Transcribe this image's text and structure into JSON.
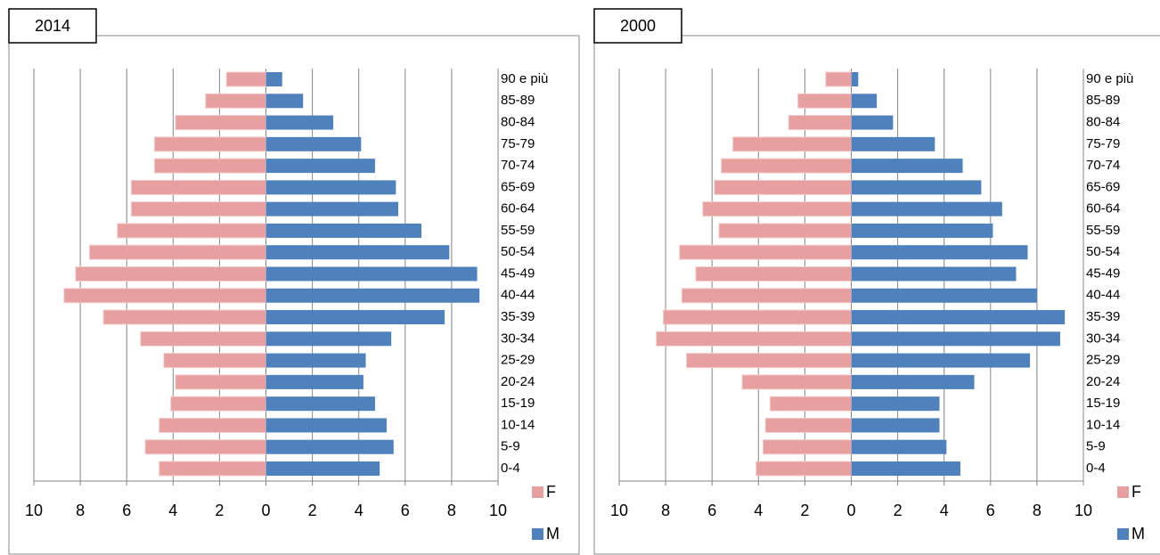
{
  "chart_data": [
    {
      "type": "bar",
      "orientation": "horizontal",
      "title": "2014",
      "categories": [
        "90 e più",
        "85-89",
        "80-84",
        "75-79",
        "70-74",
        "65-69",
        "60-64",
        "55-59",
        "50-54",
        "45-49",
        "40-44",
        "35-39",
        "30-34",
        "25-29",
        "20-24",
        "15-19",
        "10-14",
        "5-9",
        "0-4"
      ],
      "series": [
        {
          "name": "F",
          "color": "#e6a0a0",
          "values": [
            -1.7,
            -2.6,
            -3.9,
            -4.8,
            -4.8,
            -5.8,
            -5.8,
            -6.4,
            -7.6,
            -8.2,
            -8.7,
            -7.0,
            -5.4,
            -4.4,
            -3.9,
            -4.1,
            -4.6,
            -5.2,
            -4.6
          ]
        },
        {
          "name": "M",
          "color": "#4f81bd",
          "values": [
            0.7,
            1.6,
            2.9,
            4.1,
            4.7,
            5.6,
            5.7,
            6.7,
            7.9,
            9.1,
            9.2,
            7.7,
            5.4,
            4.3,
            4.2,
            4.7,
            5.2,
            5.5,
            4.9
          ]
        }
      ],
      "xlim": [
        -10,
        10
      ],
      "xticks": [
        {
          "value": -10,
          "label": "10"
        },
        {
          "value": -8,
          "label": "8"
        },
        {
          "value": -6,
          "label": "6"
        },
        {
          "value": -4,
          "label": "4"
        },
        {
          "value": -2,
          "label": "2"
        },
        0,
        2,
        4,
        6,
        8,
        10
      ],
      "grid": true,
      "legend": "right"
    },
    {
      "type": "bar",
      "orientation": "horizontal",
      "title": "2000",
      "categories": [
        "90 e più",
        "85-89",
        "80-84",
        "75-79",
        "70-74",
        "65-69",
        "60-64",
        "55-59",
        "50-54",
        "45-49",
        "40-44",
        "35-39",
        "30-34",
        "25-29",
        "20-24",
        "15-19",
        "10-14",
        "5-9",
        "0-4"
      ],
      "series": [
        {
          "name": "F",
          "color": "#e6a0a0",
          "values": [
            -1.1,
            -2.3,
            -2.7,
            -5.1,
            -5.6,
            -5.9,
            -6.4,
            -5.7,
            -7.4,
            -6.7,
            -7.3,
            -8.1,
            -8.4,
            -7.1,
            -4.7,
            -3.5,
            -3.7,
            -3.8,
            -4.1
          ]
        },
        {
          "name": "M",
          "color": "#4f81bd",
          "values": [
            0.3,
            1.1,
            1.8,
            3.6,
            4.8,
            5.6,
            6.5,
            6.1,
            7.6,
            7.1,
            8.0,
            9.2,
            9.0,
            7.7,
            5.3,
            3.8,
            3.8,
            4.1,
            4.7
          ]
        }
      ],
      "xlim": [
        -10,
        10
      ],
      "xticks": [
        {
          "value": -10,
          "label": "10"
        },
        {
          "value": -8,
          "label": "8"
        },
        {
          "value": -6,
          "label": "6"
        },
        {
          "value": -4,
          "label": "4"
        },
        {
          "value": -2,
          "label": "2"
        },
        0,
        2,
        4,
        6,
        8,
        10
      ],
      "grid": true,
      "legend": "right"
    }
  ]
}
